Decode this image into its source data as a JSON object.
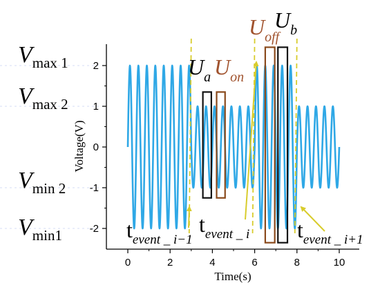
{
  "chart_data": {
    "type": "line",
    "title": "",
    "xlabel": "Time(s)",
    "ylabel": "Voltage(V)",
    "xlim": [
      -0.6,
      10.5
    ],
    "ylim": [
      -2.4,
      2.55
    ],
    "xticks": [
      "0",
      "2",
      "4",
      "6",
      "8",
      "10"
    ],
    "xtick_values": [
      0,
      2,
      4,
      6,
      8,
      10
    ],
    "yticks": [
      "-2",
      "-1",
      "0",
      "1",
      "2"
    ],
    "ytick_values": [
      -2,
      -1,
      0,
      1,
      2
    ],
    "series": [
      {
        "color": "#2fa8e6",
        "frequency_hz": 2.5,
        "segments": [
          {
            "t_start": 0,
            "t_end": 3,
            "amplitude": 2
          },
          {
            "t_start": 3,
            "t_end": 6,
            "amplitude": 1
          },
          {
            "t_start": 6,
            "t_end": 8,
            "amplitude": 2
          },
          {
            "t_start": 8,
            "t_end": 10,
            "amplitude": 1
          }
        ]
      }
    ],
    "event_lines": [
      {
        "t": 3,
        "color": "#d8cc2c"
      },
      {
        "t": 6,
        "color": "#d8cc2c"
      },
      {
        "t": 8,
        "color": "#d8cc2c"
      }
    ],
    "windows": [
      {
        "t_start": 3.55,
        "t_end": 3.95,
        "v_min": -1.25,
        "v_max": 1.35,
        "color": "#111111"
      },
      {
        "t_start": 4.2,
        "t_end": 4.6,
        "v_min": -1.25,
        "v_max": 1.35,
        "color": "#8a4a1c"
      },
      {
        "t_start": 6.5,
        "t_end": 6.95,
        "v_min": -2.35,
        "v_max": 2.45,
        "color": "#8a4a1c"
      },
      {
        "t_start": 7.1,
        "t_end": 7.55,
        "v_min": -2.35,
        "v_max": 2.45,
        "color": "#111111"
      }
    ],
    "annotations": [
      {
        "id": "ua",
        "main": "U",
        "sub": "a",
        "color": "#000000"
      },
      {
        "id": "uon",
        "main": "U",
        "sub": "on",
        "color": "#a0522d"
      },
      {
        "id": "uoff",
        "main": "U",
        "sub": "off",
        "color": "#a0522d"
      },
      {
        "id": "ub",
        "main": "U",
        "sub": "b",
        "color": "#000000"
      },
      {
        "id": "t_prev",
        "main": "t",
        "sub": "event _ i−1",
        "color": "#000000"
      },
      {
        "id": "t_curr",
        "main": "t",
        "sub": "event _ i",
        "color": "#000000"
      },
      {
        "id": "t_next",
        "main": "t",
        "sub": "event _ i+1",
        "color": "#000000"
      }
    ],
    "level_labels": [
      {
        "main": "V",
        "sub": "max 1"
      },
      {
        "main": "V",
        "sub": "max 2"
      },
      {
        "main": "V",
        "sub": "min 2"
      },
      {
        "main": "V",
        "sub": "min1"
      }
    ],
    "arrow_color": "#d8cc2c"
  }
}
